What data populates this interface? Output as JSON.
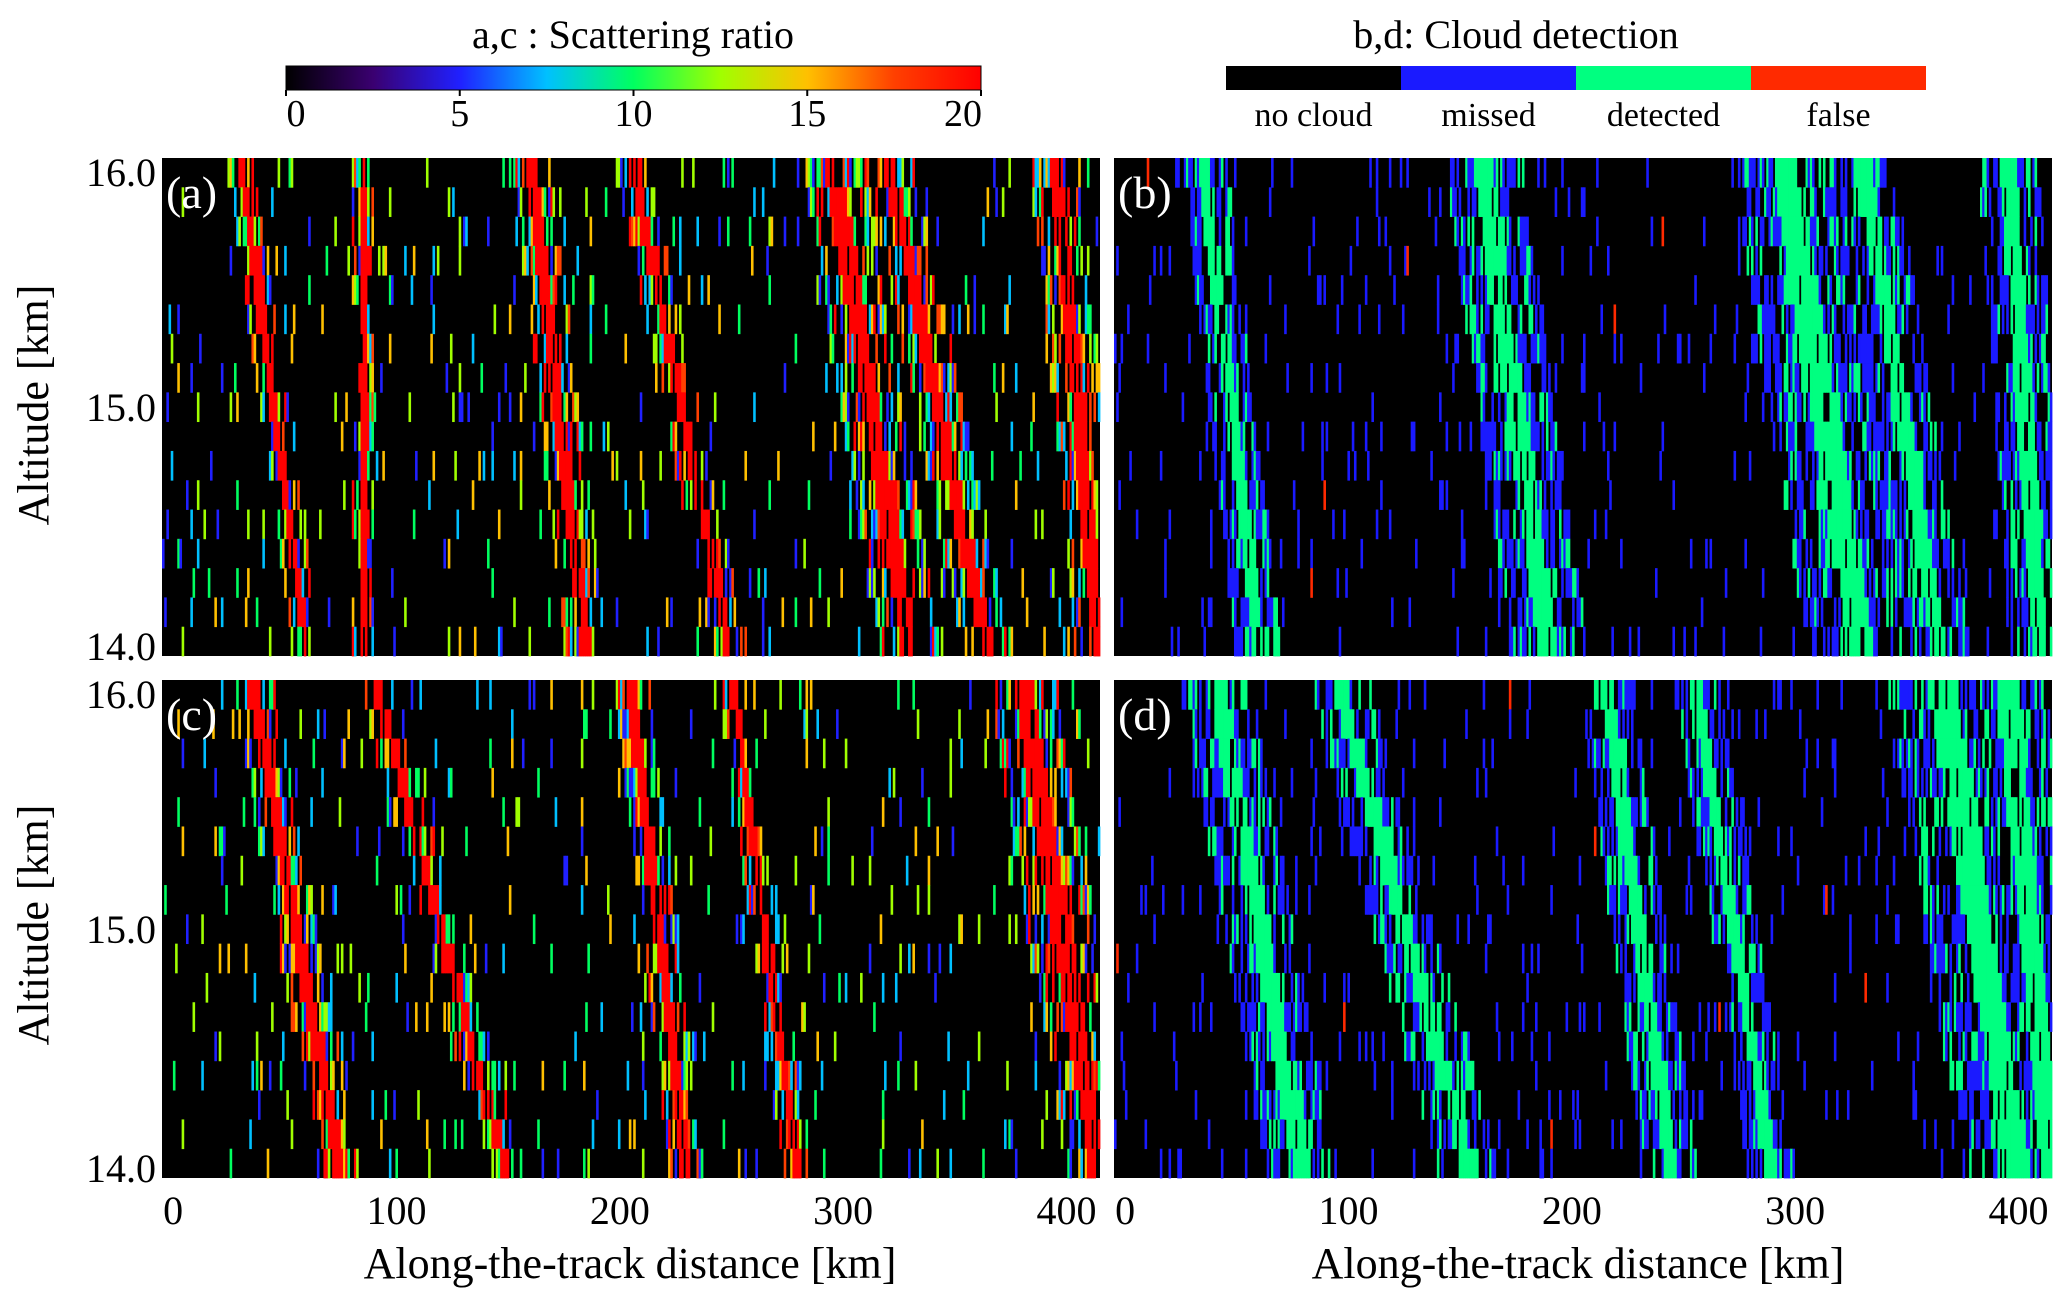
{
  "colorbars": [
    {
      "title": "a,c : Scattering ratio",
      "type": "continuous",
      "range": [
        0,
        20
      ],
      "ticks": [
        "0",
        "5",
        "10",
        "15",
        "20"
      ],
      "tick_values": [
        0,
        5,
        10,
        15,
        20
      ],
      "colormap": [
        "#000000",
        "#3a0070",
        "#2020ff",
        "#00c0ff",
        "#00ff60",
        "#a0ff00",
        "#ffc000",
        "#ff4000",
        "#ff0000"
      ]
    },
    {
      "title": "b,d: Cloud detection",
      "type": "categorical",
      "categories": [
        {
          "label": "no cloud",
          "color": "#000000"
        },
        {
          "label": "missed",
          "color": "#1a1aff"
        },
        {
          "label": "detected",
          "color": "#00ff80"
        },
        {
          "label": "false",
          "color": "#ff2a00"
        }
      ]
    }
  ],
  "axes": {
    "xlabel": "Along-the-track distance [km]",
    "ylabel": "Altitude [km]",
    "xticks": [
      "0",
      "100",
      "200",
      "300",
      "400"
    ],
    "xtick_values": [
      0,
      100,
      200,
      300,
      400
    ],
    "yticks": [
      "16.0",
      "15.0",
      "14.0"
    ],
    "ytick_values": [
      16.0,
      15.0,
      14.0
    ],
    "xlim": [
      -5,
      415
    ],
    "ylim": [
      14.0,
      16.0
    ]
  },
  "chart_data": [
    {
      "type": "heatmap",
      "panel": "(a)",
      "colorbar": 0,
      "xlabel": "",
      "ylabel": "Altitude [km]",
      "xlim": [
        -5,
        415
      ],
      "ylim": [
        14.0,
        16.0
      ],
      "bands": [
        {
          "x_at_top": 30,
          "x_at_bottom": 60,
          "width": 4
        },
        {
          "x_at_top": 85,
          "x_at_bottom": 85,
          "width": 3
        },
        {
          "x_at_top": 160,
          "x_at_bottom": 185,
          "width": 6
        },
        {
          "x_at_top": 205,
          "x_at_bottom": 250,
          "width": 5
        },
        {
          "x_at_top": 295,
          "x_at_bottom": 330,
          "width": 9
        },
        {
          "x_at_top": 320,
          "x_at_bottom": 365,
          "width": 7
        },
        {
          "x_at_top": 395,
          "x_at_bottom": 415,
          "width": 7
        }
      ]
    },
    {
      "type": "heatmap",
      "panel": "(b)",
      "colorbar": 1,
      "xlabel": "",
      "ylabel": "",
      "xlim": [
        -5,
        415
      ],
      "ylim": [
        14.0,
        16.0
      ],
      "bands": [
        {
          "x_at_top": 35,
          "x_at_bottom": 60,
          "width": 6
        },
        {
          "x_at_top": 160,
          "x_at_bottom": 190,
          "width": 10
        },
        {
          "x_at_top": 295,
          "x_at_bottom": 330,
          "width": 14
        },
        {
          "x_at_top": 330,
          "x_at_bottom": 365,
          "width": 8
        },
        {
          "x_at_top": 395,
          "x_at_bottom": 410,
          "width": 8
        }
      ]
    },
    {
      "type": "heatmap",
      "panel": "(c)",
      "colorbar": 0,
      "xlabel": "Along-the-track distance [km]",
      "ylabel": "Altitude [km]",
      "xlim": [
        -5,
        415
      ],
      "ylim": [
        14.0,
        16.0
      ],
      "bands": [
        {
          "x_at_top": 35,
          "x_at_bottom": 75,
          "width": 6
        },
        {
          "x_at_top": 90,
          "x_at_bottom": 150,
          "width": 5
        },
        {
          "x_at_top": 205,
          "x_at_bottom": 230,
          "width": 5
        },
        {
          "x_at_top": 250,
          "x_at_bottom": 280,
          "width": 4
        },
        {
          "x_at_top": 380,
          "x_at_bottom": 415,
          "width": 10
        }
      ]
    },
    {
      "type": "heatmap",
      "panel": "(d)",
      "colorbar": 1,
      "xlabel": "Along-the-track distance [km]",
      "ylabel": "",
      "xlim": [
        -5,
        415
      ],
      "ylim": [
        14.0,
        16.0
      ],
      "bands": [
        {
          "x_at_top": 40,
          "x_at_bottom": 80,
          "width": 9
        },
        {
          "x_at_top": 95,
          "x_at_bottom": 155,
          "width": 8
        },
        {
          "x_at_top": 215,
          "x_at_bottom": 245,
          "width": 7
        },
        {
          "x_at_top": 255,
          "x_at_bottom": 290,
          "width": 6
        },
        {
          "x_at_top": 365,
          "x_at_bottom": 400,
          "width": 14
        },
        {
          "x_at_top": 395,
          "x_at_bottom": 415,
          "width": 10
        }
      ]
    }
  ],
  "panels": [
    {
      "label": "(a)"
    },
    {
      "label": "(b)"
    },
    {
      "label": "(c)"
    },
    {
      "label": "(d)"
    }
  ]
}
